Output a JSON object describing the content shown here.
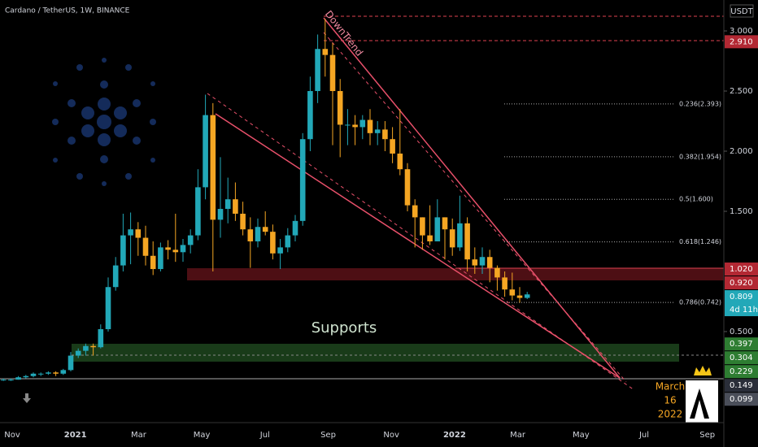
{
  "chart_data": {
    "type": "candlestick",
    "title": "Cardano / TetherUS, 1W, BINANCE",
    "currency": "USDT",
    "annotations": {
      "trend": "DownTrend",
      "zone": "Supports",
      "date": [
        "March",
        "16",
        "2022"
      ]
    },
    "up_color": "#22a8b8",
    "down_color": "#f5a623",
    "ylim": [
      -0.257,
      3.257
    ],
    "yticks": [
      {
        "value": 3,
        "label": "3.000"
      },
      {
        "value": 2.5,
        "label": "2.500"
      },
      {
        "value": 2,
        "label": "2.000"
      },
      {
        "value": 1.5,
        "label": "1.500"
      },
      {
        "value": 0.5,
        "label": "0.500"
      }
    ],
    "x_tick_labels": [
      "Nov",
      "2021",
      "Mar",
      "May",
      "Jul",
      "Sep",
      "Nov",
      "2022",
      "Mar",
      "May",
      "Jul",
      "Sep"
    ],
    "open": [
      0.1,
      0.1,
      0.1,
      0.1,
      0.12,
      0.13,
      0.15,
      0.15,
      0.16,
      0.15,
      0.18,
      0.3,
      0.34,
      0.38,
      0.37,
      0.52,
      0.87,
      1.05,
      1.3,
      1.35,
      1.28,
      1.13,
      1.02,
      1.2,
      1.18,
      1.16,
      1.22,
      1.3,
      1.7,
      2.3,
      1.43,
      1.52,
      1.6,
      1.48,
      1.35,
      1.25,
      1.37,
      1.33,
      1.15,
      1.2,
      1.3,
      1.42,
      2.1,
      2.5,
      2.85,
      2.8,
      2.5,
      2.22,
      2.22,
      2.2,
      2.26,
      2.15,
      2.18,
      2.1,
      1.98,
      1.85,
      1.55,
      1.45,
      1.3,
      1.25,
      1.45,
      1.35,
      1.2,
      1.4,
      1.1,
      1.05,
      1.12,
      1.03,
      0.95,
      0.85,
      0.8,
      0.78
    ],
    "high": [
      0.11,
      0.11,
      0.11,
      0.13,
      0.14,
      0.16,
      0.16,
      0.17,
      0.17,
      0.19,
      0.33,
      0.36,
      0.4,
      0.4,
      0.56,
      0.95,
      1.12,
      1.48,
      1.49,
      1.41,
      1.38,
      1.25,
      1.24,
      1.26,
      1.48,
      1.27,
      1.35,
      1.85,
      2.47,
      2.4,
      1.95,
      1.78,
      1.74,
      1.58,
      1.45,
      1.44,
      1.5,
      1.39,
      1.27,
      1.36,
      1.47,
      2.15,
      2.62,
      2.97,
      3.1,
      2.9,
      2.6,
      2.35,
      2.3,
      2.3,
      2.35,
      2.25,
      2.25,
      2.2,
      2.35,
      1.9,
      1.6,
      1.45,
      1.55,
      1.6,
      1.45,
      1.44,
      1.63,
      1.45,
      1.2,
      1.2,
      1.18,
      1.05,
      1.0,
      0.99,
      0.87,
      0.83
    ],
    "low": [
      0.09,
      0.09,
      0.09,
      0.1,
      0.11,
      0.12,
      0.13,
      0.14,
      0.13,
      0.14,
      0.17,
      0.28,
      0.3,
      0.3,
      0.36,
      0.5,
      0.84,
      1.0,
      1.06,
      1.13,
      1.05,
      0.97,
      1.0,
      1.1,
      1.08,
      1.08,
      1.15,
      1.26,
      1.6,
      1.0,
      1.28,
      1.4,
      1.42,
      1.3,
      1.03,
      1.2,
      1.3,
      1.1,
      1.02,
      1.16,
      1.25,
      1.38,
      2.0,
      2.4,
      2.62,
      2.05,
      1.95,
      2.05,
      2.05,
      2.1,
      2.05,
      2.05,
      2.0,
      1.9,
      1.8,
      1.5,
      1.2,
      1.18,
      1.22,
      1.28,
      1.1,
      1.13,
      1.17,
      1.0,
      0.98,
      0.98,
      0.91,
      0.84,
      0.79,
      0.76,
      0.74,
      0.77
    ],
    "close": [
      0.1,
      0.1,
      0.1,
      0.12,
      0.13,
      0.15,
      0.15,
      0.16,
      0.15,
      0.18,
      0.3,
      0.34,
      0.38,
      0.37,
      0.52,
      0.87,
      1.05,
      1.3,
      1.35,
      1.28,
      1.13,
      1.02,
      1.2,
      1.18,
      1.16,
      1.22,
      1.3,
      1.7,
      2.3,
      1.43,
      1.52,
      1.6,
      1.48,
      1.35,
      1.25,
      1.37,
      1.33,
      1.15,
      1.2,
      1.3,
      1.42,
      2.1,
      2.5,
      2.85,
      2.8,
      2.5,
      2.22,
      2.22,
      2.2,
      2.26,
      2.15,
      2.18,
      2.1,
      1.98,
      1.85,
      1.55,
      1.45,
      1.3,
      1.25,
      1.45,
      1.35,
      1.2,
      1.4,
      1.1,
      1.05,
      1.12,
      1.03,
      0.95,
      0.85,
      0.8,
      0.78,
      0.809
    ],
    "fib_levels": [
      {
        "value": 2.393,
        "label": "0.236(2.393)"
      },
      {
        "value": 1.954,
        "label": "0.382(1.954)"
      },
      {
        "value": 1.6,
        "label": "0.5(1.600)"
      },
      {
        "value": 1.246,
        "label": "0.618(1.246)"
      },
      {
        "value": 0.742,
        "label": "0.786(0.742)"
      }
    ],
    "price_tags": [
      {
        "value": 2.91,
        "label": "2.910",
        "color": "#b22833"
      },
      {
        "value": 1.02,
        "label": "1.020",
        "color": "#b22833"
      },
      {
        "value": 0.92,
        "label": "0.920",
        "color": "#b22833"
      },
      {
        "value": 0.809,
        "label": "0.809",
        "sub": "4d 11h",
        "color": "#22a8b8"
      },
      {
        "value": 0.397,
        "label": "0.397",
        "color": "#2e7d32"
      },
      {
        "value": 0.304,
        "label": "0.304",
        "color": "#2e7d32"
      },
      {
        "value": 0.229,
        "label": "0.229",
        "color": "#2e7d32"
      },
      {
        "value": 0.149,
        "label": "0.149",
        "color": "#2a2e39"
      },
      {
        "value": 0.099,
        "label": "0.099",
        "color": "#4a4e59"
      }
    ]
  }
}
